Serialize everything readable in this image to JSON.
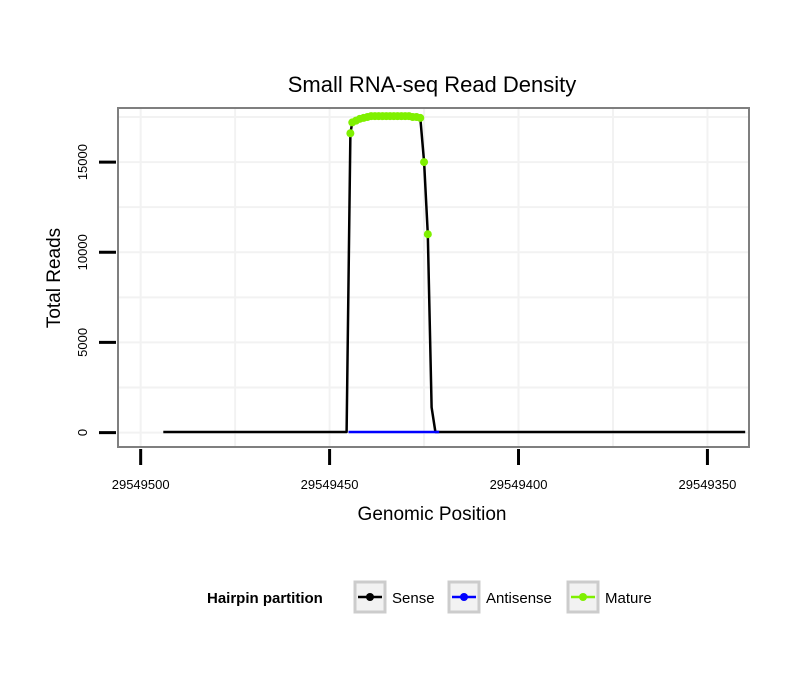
{
  "chart_data": {
    "type": "line",
    "title": "Small RNA-seq Read Density",
    "xlabel": "Genomic Position",
    "ylabel": "Total Reads",
    "x_reversed": true,
    "xlim": [
      29549506,
      29549339
    ],
    "ylim": [
      -800,
      18000
    ],
    "x_ticks": [
      29549500,
      29549450,
      29549400,
      29549350
    ],
    "x_tick_labels": [
      "29549500",
      "29549450",
      "29549400",
      "29549350"
    ],
    "y_ticks": [
      0,
      5000,
      10000,
      15000
    ],
    "y_tick_labels": [
      "0",
      "5000",
      "10000",
      "15000"
    ],
    "grid": true,
    "legend": {
      "title": "Hairpin partition",
      "position": "bottom",
      "entries": [
        "Sense",
        "Antisense",
        "Mature"
      ]
    },
    "series": [
      {
        "name": "Sense",
        "color": "#000000",
        "x": [
          29549494,
          29549445.5,
          29549444.5,
          29549444,
          29549443,
          29549442,
          29549440,
          29549436,
          29549432,
          29549428,
          29549426,
          29549425,
          29549424,
          29549423,
          29549422,
          29549421,
          29549420,
          29549340
        ],
        "y": [
          30,
          30,
          16600,
          17200,
          17300,
          17450,
          17550,
          17550,
          17550,
          17550,
          17450,
          15000,
          11000,
          1400,
          30,
          30,
          30,
          30
        ]
      },
      {
        "name": "Antisense",
        "color": "#0000ff",
        "x": [
          29549445,
          29549421
        ],
        "y": [
          30,
          30
        ]
      },
      {
        "name": "Mature",
        "color": "#7ff000",
        "x": [
          29549444.5,
          29549444,
          29549443,
          29549442,
          29549441,
          29549440,
          29549439,
          29549438,
          29549437,
          29549436,
          29549435,
          29549434,
          29549433,
          29549432,
          29549431,
          29549430,
          29549429,
          29549428,
          29549427,
          29549426,
          29549425,
          29549424
        ],
        "y": [
          16600,
          17200,
          17300,
          17400,
          17450,
          17500,
          17550,
          17550,
          17550,
          17550,
          17550,
          17550,
          17550,
          17550,
          17550,
          17550,
          17550,
          17500,
          17500,
          17450,
          15000,
          11000
        ]
      }
    ]
  }
}
